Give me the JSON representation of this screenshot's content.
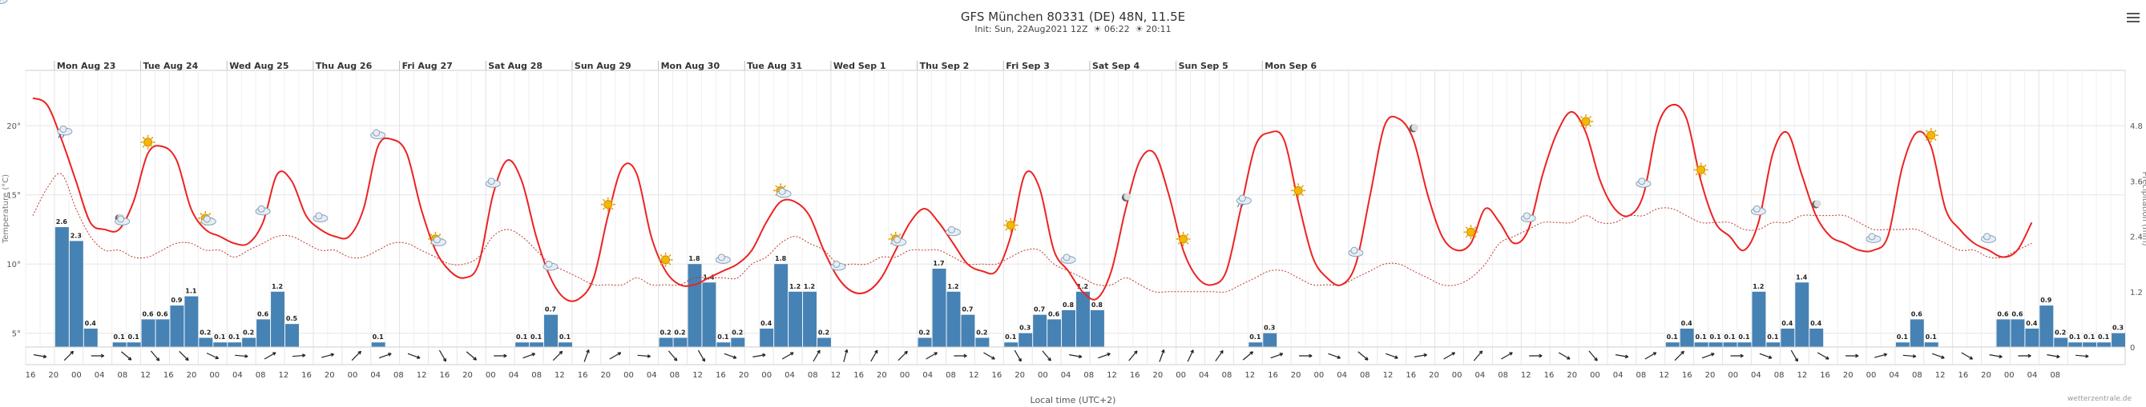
{
  "header": {
    "title": "GFS München 80331 (DE) 48N, 11.5E",
    "init": "Init: Sun, 22Aug2021 12Z",
    "sunrise": "06:22",
    "sunset": "20:11"
  },
  "credit": "wetterzentrale.de",
  "chart_data": {
    "type": "bar+line",
    "xlabel": "Local time (UTC+2)",
    "ylabel_right": "Precipitation (mm)",
    "ylabel_left": "Temperature (°C)",
    "left_axis": {
      "range": [
        4,
        24
      ],
      "ticks": [
        "5°",
        "10°",
        "15°",
        "20°"
      ],
      "tick_values": [
        5,
        10,
        15,
        20
      ]
    },
    "right_axis": {
      "range": [
        0,
        6
      ],
      "ticks": [
        "0",
        "1.2",
        "2.4",
        "3.6",
        "4.8"
      ],
      "tick_values": [
        0,
        1.2,
        2.4,
        3.6,
        4.8
      ]
    },
    "days": [
      "Mon Aug 23",
      "Tue Aug 24",
      "Wed Aug 25",
      "Thu Aug 26",
      "Fri Aug 27",
      "Sat Aug 28",
      "Sun Aug 29",
      "Mon Aug 30",
      "Tue Aug 31",
      "Wed Sep 1",
      "Thu Sep 2",
      "Fri Sep 3",
      "Sat Sep 4",
      "Sun Sep 5",
      "Mon Sep 6"
    ],
    "hour_labels": [
      "16",
      "20",
      "00",
      "04",
      "08",
      "12",
      "16",
      "20",
      "00",
      "04",
      "08",
      "12",
      "16",
      "20",
      "00",
      "04",
      "08",
      "12",
      "16",
      "20",
      "00",
      "04",
      "08",
      "12",
      "16",
      "20",
      "00",
      "04",
      "08",
      "12",
      "16",
      "20",
      "00",
      "04",
      "08",
      "12",
      "16",
      "20",
      "00",
      "04",
      "08",
      "12",
      "16",
      "20",
      "00",
      "04",
      "08",
      "12",
      "16",
      "20",
      "00",
      "04",
      "08",
      "12",
      "16",
      "20",
      "00",
      "04",
      "08",
      "12",
      "16",
      "20",
      "00",
      "04",
      "08",
      "12",
      "16",
      "20",
      "00",
      "04",
      "08",
      "12",
      "16",
      "20",
      "00",
      "04",
      "08",
      "12",
      "16",
      "20",
      "00",
      "04",
      "08",
      "12",
      "16",
      "20",
      "00",
      "04",
      "08"
    ],
    "precip_labels": [
      "",
      "",
      "2.6",
      "2.3",
      "0.4",
      "",
      "0.1",
      "0.1",
      "0.6",
      "0.6",
      "0.9",
      "1.1",
      "0.2",
      "0.1",
      "0.1",
      "0.2",
      "0.6",
      "1.2",
      "0.5",
      "",
      "",
      "",
      "",
      "",
      "0.1",
      "",
      "",
      "",
      "",
      "",
      "",
      "",
      "",
      "",
      "0.1",
      "0.1",
      "0.7",
      "0.1",
      "",
      "",
      "",
      "",
      "",
      "",
      "0.2",
      "0.2",
      "1.8",
      "1.4",
      "0.1",
      "0.2",
      "",
      "0.4",
      "1.8",
      "1.2",
      "1.2",
      "0.2",
      "",
      "",
      "",
      "",
      "",
      "",
      "0.2",
      "1.7",
      "1.2",
      "0.7",
      "0.2",
      "",
      "0.1",
      "0.3",
      "0.7",
      "0.6",
      "0.8",
      "1.2",
      "0.8",
      "",
      "",
      "",
      "",
      "",
      "",
      "",
      "",
      "",
      "",
      "0.1",
      "0.3",
      "",
      "",
      "",
      "",
      "",
      "",
      "",
      "",
      "",
      "",
      "",
      "",
      "",
      "",
      "",
      "",
      "",
      "",
      "",
      "",
      "",
      "",
      "",
      "",
      "",
      "",
      "",
      "0.1",
      "0.4",
      "0.1",
      "0.1",
      "0.1",
      "0.1",
      "1.2",
      "0.1",
      "0.4",
      "1.4",
      "0.4",
      "",
      "",
      "",
      "",
      "",
      "0.1",
      "0.6",
      "0.1",
      "",
      "",
      "",
      "",
      "0.6",
      "0.6",
      "0.4",
      "0.9",
      "0.2",
      "0.1",
      "0.1",
      "0.1",
      "0.3"
    ],
    "precip": [
      0,
      0,
      2.6,
      2.3,
      0.4,
      0,
      0.1,
      0.1,
      0.6,
      0.6,
      0.9,
      1.1,
      0.2,
      0.1,
      0.1,
      0.2,
      0.6,
      1.2,
      0.5,
      0,
      0,
      0,
      0,
      0,
      0.1,
      0,
      0,
      0,
      0,
      0,
      0,
      0,
      0,
      0,
      0.1,
      0.1,
      0.7,
      0.1,
      0,
      0,
      0,
      0,
      0,
      0,
      0.2,
      0.2,
      1.8,
      1.4,
      0.1,
      0.2,
      0,
      0.4,
      1.8,
      1.2,
      1.2,
      0.2,
      0,
      0,
      0,
      0,
      0,
      0,
      0.2,
      1.7,
      1.2,
      0.7,
      0.2,
      0,
      0.1,
      0.3,
      0.7,
      0.6,
      0.8,
      1.2,
      0.8,
      0,
      0,
      0,
      0,
      0,
      0,
      0,
      0,
      0,
      0,
      0.1,
      0.3,
      0,
      0,
      0,
      0,
      0,
      0,
      0,
      0,
      0,
      0,
      0,
      0,
      0,
      0,
      0,
      0,
      0,
      0,
      0,
      0,
      0,
      0,
      0,
      0,
      0,
      0,
      0,
      0.1,
      0.4,
      0.1,
      0.1,
      0.1,
      0.1,
      1.2,
      0.1,
      0.4,
      1.4,
      0.4,
      0,
      0,
      0,
      0,
      0,
      0.1,
      0.6,
      0.1,
      0,
      0,
      0,
      0,
      0.6,
      0.6,
      0.4,
      0.9,
      0.2,
      0.1,
      0.1,
      0.1,
      0.3
    ],
    "temperature": [
      22,
      21.5,
      19,
      16,
      13,
      12.5,
      12.5,
      14.5,
      18,
      18.5,
      17.5,
      14,
      12.5,
      12,
      11.5,
      11.5,
      13,
      16.5,
      16,
      13.5,
      12.5,
      12,
      12,
      14,
      18.5,
      19,
      18,
      14,
      11,
      9.5,
      9,
      10,
      15,
      17.5,
      16,
      12,
      9,
      7.5,
      7.5,
      9,
      13.5,
      17,
      16.5,
      12,
      9.5,
      8.5,
      8.5,
      9,
      9.5,
      10,
      11,
      13,
      14.5,
      14.5,
      13.5,
      11,
      9,
      8,
      8,
      9,
      11,
      13,
      14,
      13,
      11.5,
      10,
      9.5,
      9.5,
      12,
      16.5,
      15.5,
      11,
      9.5,
      8,
      7.5,
      9.5,
      14,
      17.5,
      18,
      15,
      11,
      9,
      8.5,
      9.5,
      14,
      18.5,
      19.5,
      19,
      14.5,
      10.5,
      9,
      8.5,
      10,
      15,
      20,
      20.5,
      19,
      15,
      12,
      11,
      11.5,
      14,
      13,
      11.5,
      12.5,
      16.5,
      19.5,
      21,
      19.5,
      16,
      14,
      13.5,
      15,
      20,
      21.5,
      20.5,
      16,
      13,
      12,
      11,
      13,
      18,
      19.5,
      16.5,
      13.5,
      12,
      11.5,
      11,
      11,
      12,
      17,
      19.5,
      18.5,
      14,
      12.5,
      11.5,
      11,
      10.5,
      11,
      13
    ],
    "dewpoint": [
      13.5,
      15.5,
      16.5,
      14,
      12,
      11,
      11,
      10.5,
      10.5,
      11,
      11.5,
      11.5,
      11,
      11,
      10.5,
      11,
      11.5,
      12,
      12,
      11.5,
      11,
      11,
      10.5,
      10.5,
      11,
      11.5,
      11.5,
      11,
      10.5,
      10,
      10,
      10.5,
      12,
      12.5,
      12,
      11,
      10,
      9.5,
      9,
      8.5,
      8.5,
      8.5,
      9,
      8.5,
      8.5,
      8.5,
      9,
      9,
      9,
      9,
      10,
      10.5,
      11.5,
      12,
      11.5,
      11,
      10,
      10,
      10,
      10.5,
      10.5,
      11,
      11,
      11,
      10.5,
      10,
      10,
      10,
      10.5,
      11,
      11,
      10,
      9.5,
      9,
      8.5,
      8.5,
      9,
      8.5,
      8,
      8,
      8,
      8,
      8,
      8,
      8.5,
      9,
      9.5,
      9.5,
      9,
      8.5,
      8.5,
      8.5,
      9,
      9.5,
      10,
      10,
      9.5,
      9,
      8.5,
      8.5,
      9,
      10,
      11.5,
      12,
      12.5,
      13,
      13,
      13,
      13.5,
      13,
      13,
      13.5,
      13.5,
      14,
      14,
      13.5,
      13,
      13,
      13,
      12.5,
      12.5,
      13,
      13,
      13.5,
      13.5,
      13.5,
      13.5,
      13,
      12.5,
      12.5,
      12.5,
      12.5,
      12,
      11.5,
      11,
      11,
      10.5,
      10.5,
      11,
      11.5
    ],
    "weather_icons": [
      {
        "slot": 2,
        "icon": "rain-cloud-icon"
      },
      {
        "slot": 6,
        "icon": "moon-cloud-icon"
      },
      {
        "slot": 8,
        "icon": "sun-icon"
      },
      {
        "slot": 12,
        "icon": "sun-cloud-icon"
      },
      {
        "slot": 16,
        "icon": "cloud-icon"
      },
      {
        "slot": 20,
        "icon": "cloud-icon"
      },
      {
        "slot": 24,
        "icon": "cloud-icon"
      },
      {
        "slot": 28,
        "icon": "sun-cloud-icon"
      },
      {
        "slot": 32,
        "icon": "cloud-icon"
      },
      {
        "slot": 36,
        "icon": "cloud-icon"
      },
      {
        "slot": 40,
        "icon": "sun-icon"
      },
      {
        "slot": 44,
        "icon": "sun-icon"
      },
      {
        "slot": 48,
        "icon": "cloud-icon"
      },
      {
        "slot": 52,
        "icon": "sun-cloud-icon"
      },
      {
        "slot": 56,
        "icon": "cloud-icon"
      },
      {
        "slot": 60,
        "icon": "sun-cloud-icon"
      },
      {
        "slot": 64,
        "icon": "cloud-icon"
      },
      {
        "slot": 68,
        "icon": "sun-icon"
      },
      {
        "slot": 72,
        "icon": "cloud-icon"
      },
      {
        "slot": 76,
        "icon": "moon-icon"
      },
      {
        "slot": 80,
        "icon": "sun-icon"
      },
      {
        "slot": 84,
        "icon": "rain-cloud-icon"
      },
      {
        "slot": 88,
        "icon": "sun-icon"
      },
      {
        "slot": 92,
        "icon": "cloud-icon"
      },
      {
        "slot": 96,
        "icon": "moon-icon"
      },
      {
        "slot": 100,
        "icon": "sun-icon"
      },
      {
        "slot": 104,
        "icon": "cloud-icon"
      },
      {
        "slot": 108,
        "icon": "sun-icon"
      },
      {
        "slot": 112,
        "icon": "cloud-icon"
      },
      {
        "slot": 116,
        "icon": "sun-icon"
      },
      {
        "slot": 120,
        "icon": "cloud-icon"
      },
      {
        "slot": 124,
        "icon": "moon-icon"
      },
      {
        "slot": 128,
        "icon": "cloud-icon"
      },
      {
        "slot": 132,
        "icon": "sun-icon"
      },
      {
        "slot": 136,
        "icon": "cloud-icon"
      },
      {
        "slot": 140,
        "icon": "cloud-icon"
      }
    ],
    "wind_directions": [
      100,
      120,
      45,
      60,
      90,
      95,
      130,
      150,
      140,
      140,
      135,
      120,
      115,
      110,
      95,
      80,
      60,
      55,
      85,
      90,
      75,
      60,
      45,
      50,
      70,
      80,
      110,
      135,
      150,
      145,
      130,
      110,
      90,
      80,
      70,
      60,
      45,
      30,
      20,
      25,
      60,
      80,
      95,
      120,
      140,
      160,
      150,
      130,
      110,
      95,
      80,
      70,
      60,
      45,
      30,
      20,
      15,
      25,
      30,
      40,
      45,
      50,
      60,
      70,
      90,
      100,
      120,
      135,
      150,
      155,
      140,
      120,
      100,
      85,
      70,
      55,
      40,
      30,
      20,
      20,
      25,
      30,
      35,
      40,
      50,
      60,
      70,
      80,
      90,
      95,
      110,
      120,
      130,
      125,
      110,
      95,
      80,
      70,
      60,
      45,
      40,
      45,
      60,
      75,
      90,
      110,
      120,
      130,
      140,
      120,
      100,
      80,
      60,
      45,
      45,
      60,
      70,
      80,
      90,
      100,
      110,
      130,
      150,
      140,
      120,
      100,
      90,
      80,
      75,
      85,
      95,
      105,
      110,
      115,
      120,
      110,
      100,
      95,
      90,
      95,
      100,
      100,
      95,
      90
    ]
  }
}
